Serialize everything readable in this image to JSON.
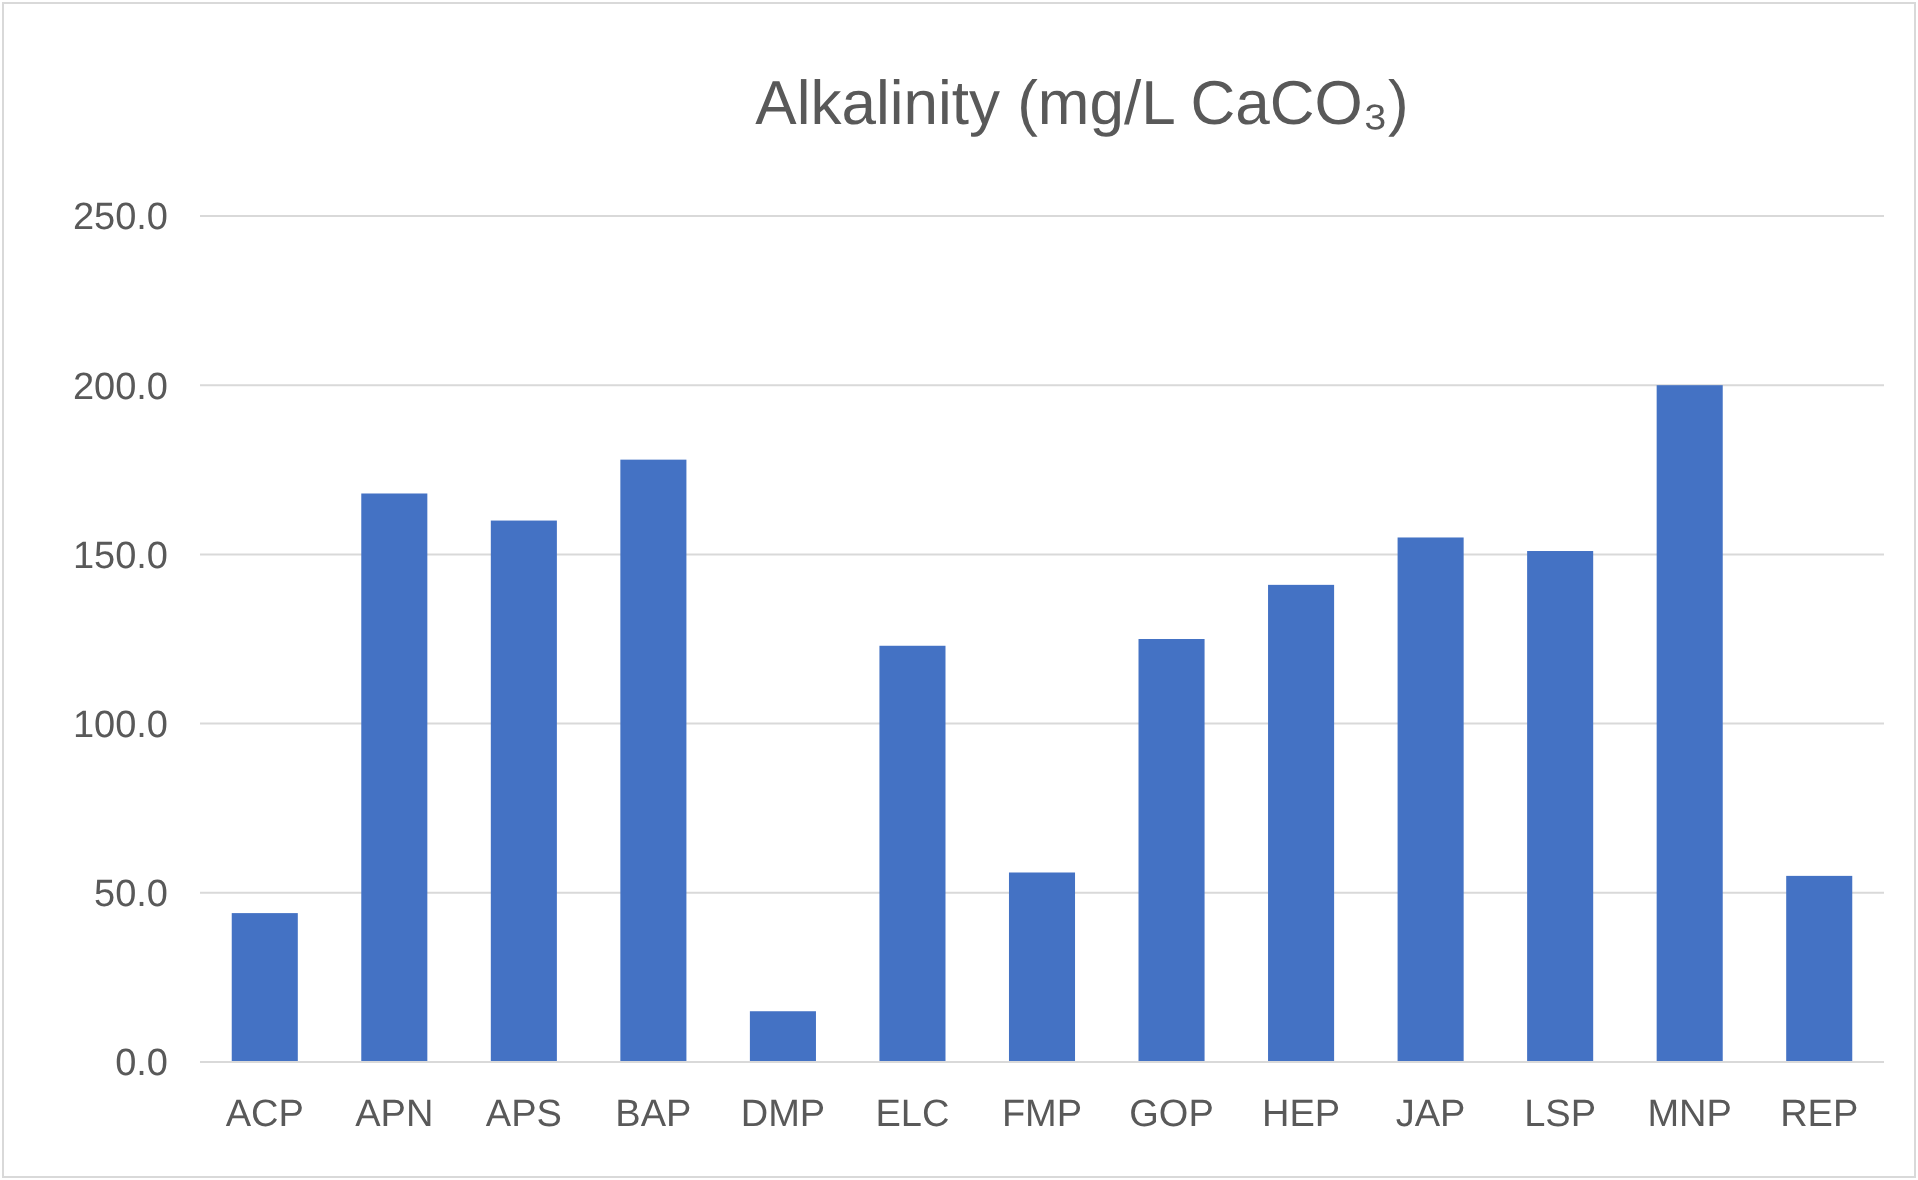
{
  "chart_data": {
    "type": "bar",
    "title": "Alkalinity (mg/L CaCO₃)",
    "categories": [
      "ACP",
      "APN",
      "APS",
      "BAP",
      "DMP",
      "ELC",
      "FMP",
      "GOP",
      "HEP",
      "JAP",
      "LSP",
      "MNP",
      "REP"
    ],
    "values": [
      44,
      168,
      160,
      178,
      15,
      123,
      56,
      125,
      141,
      155,
      151,
      200,
      55
    ],
    "color": "#4472c4",
    "ylim": [
      0,
      250
    ],
    "yticks": [
      {
        "value": 0,
        "label": "0.0"
      },
      {
        "value": 50,
        "label": "50.0"
      },
      {
        "value": 100,
        "label": "100.0"
      },
      {
        "value": 150,
        "label": "150.0"
      },
      {
        "value": 200,
        "label": "200.0"
      },
      {
        "value": 250,
        "label": "250.0"
      }
    ],
    "grid": "y"
  }
}
